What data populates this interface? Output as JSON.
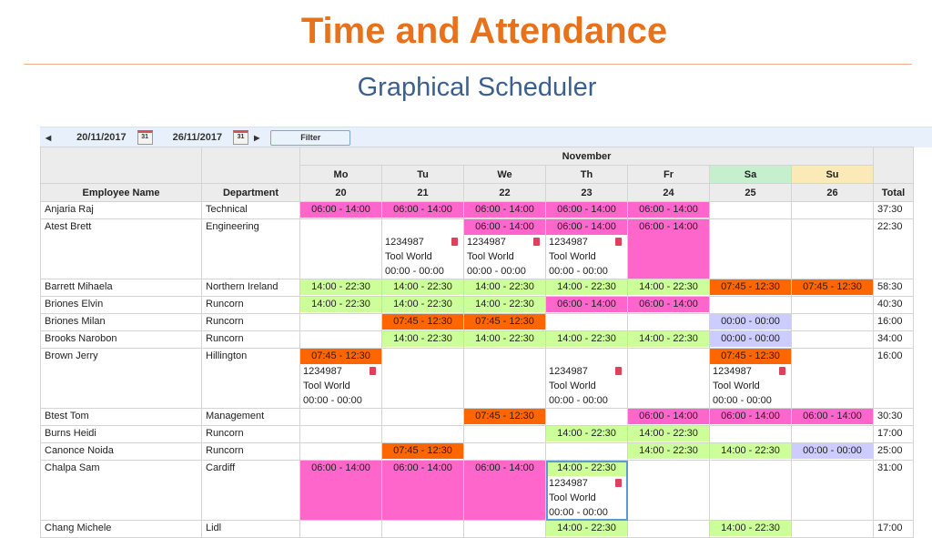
{
  "header": {
    "title": "Time and Attendance",
    "subtitle": "Graphical Scheduler"
  },
  "toolbar": {
    "start_date": "20/11/2017",
    "end_date": "26/11/2017",
    "calendar_icon_text": "31",
    "filter_label": "Filter"
  },
  "colors": {
    "title": "#e8721c",
    "subtitle": "#3b5f8f",
    "pink": "#ff66cc",
    "green": "#ccff99",
    "orange": "#ff6600",
    "lavender": "#ccccff",
    "saturday": "#c6efce",
    "sunday": "#fbe9b7"
  },
  "grid": {
    "month": "November",
    "col_name": "Employee Name",
    "col_dept": "Department",
    "col_total": "Total",
    "days": [
      {
        "dow": "Mo",
        "date": "20"
      },
      {
        "dow": "Tu",
        "date": "21"
      },
      {
        "dow": "We",
        "date": "22"
      },
      {
        "dow": "Th",
        "date": "23"
      },
      {
        "dow": "Fr",
        "date": "24"
      },
      {
        "dow": "Sa",
        "date": "25",
        "color": "saturday"
      },
      {
        "dow": "Su",
        "date": "26",
        "color": "sunday"
      }
    ],
    "rows": [
      {
        "name": "Anjaria Raj",
        "dept": "Technical",
        "total": "37:30",
        "cells": [
          {
            "shift": "06:00 - 14:00",
            "color": "pink"
          },
          {
            "shift": "06:00 - 14:00",
            "color": "pink"
          },
          {
            "shift": "06:00 - 14:00",
            "color": "pink"
          },
          {
            "shift": "06:00 - 14:00",
            "color": "pink"
          },
          {
            "shift": "06:00 - 14:00",
            "color": "pink"
          },
          {},
          {}
        ]
      },
      {
        "name": "Atest Brett",
        "dept": "Engineering",
        "total": "22:30",
        "cells": [
          {},
          {
            "job": {
              "id": "1234987",
              "site": "Tool World",
              "time": "00:00 - 00:00"
            }
          },
          {
            "shift": "06:00 - 14:00",
            "color": "pink",
            "job": {
              "id": "1234987",
              "site": "Tool World",
              "time": "00:00 - 00:00"
            }
          },
          {
            "shift": "06:00 - 14:00",
            "color": "pink",
            "job": {
              "id": "1234987",
              "site": "Tool World",
              "time": "00:00 - 00:00"
            }
          },
          {
            "shift": "06:00 - 14:00",
            "color": "pink",
            "fill": true
          },
          {},
          {}
        ]
      },
      {
        "name": "Barrett Mihaela",
        "dept": "Northern Ireland",
        "total": "58:30",
        "cells": [
          {
            "shift": "14:00 - 22:30",
            "color": "green"
          },
          {
            "shift": "14:00 - 22:30",
            "color": "green"
          },
          {
            "shift": "14:00 - 22:30",
            "color": "green"
          },
          {
            "shift": "14:00 - 22:30",
            "color": "green"
          },
          {
            "shift": "14:00 - 22:30",
            "color": "green"
          },
          {
            "shift": "07:45 - 12:30",
            "color": "orange"
          },
          {
            "shift": "07:45 - 12:30",
            "color": "orange"
          }
        ]
      },
      {
        "name": "Briones Elvin",
        "dept": "Runcorn",
        "total": "40:30",
        "cells": [
          {
            "shift": "14:00 - 22:30",
            "color": "green"
          },
          {
            "shift": "14:00 - 22:30",
            "color": "green"
          },
          {
            "shift": "14:00 - 22:30",
            "color": "green"
          },
          {
            "shift": "06:00 - 14:00",
            "color": "pink"
          },
          {
            "shift": "06:00 - 14:00",
            "color": "pink"
          },
          {},
          {}
        ]
      },
      {
        "name": "Briones Milan",
        "dept": "Runcorn",
        "total": "16:00",
        "cells": [
          {},
          {
            "shift": "07:45 - 12:30",
            "color": "orange"
          },
          {
            "shift": "07:45 - 12:30",
            "color": "orange"
          },
          {},
          {},
          {
            "shift": "00:00 - 00:00",
            "color": "lavender"
          },
          {}
        ]
      },
      {
        "name": "Brooks Narobon",
        "dept": "Runcorn",
        "total": "34:00",
        "cells": [
          {},
          {
            "shift": "14:00 - 22:30",
            "color": "green"
          },
          {
            "shift": "14:00 - 22:30",
            "color": "green"
          },
          {
            "shift": "14:00 - 22:30",
            "color": "green"
          },
          {
            "shift": "14:00 - 22:30",
            "color": "green"
          },
          {
            "shift": "00:00 - 00:00",
            "color": "lavender"
          },
          {}
        ]
      },
      {
        "name": "Brown Jerry",
        "dept": "Hillington",
        "total": "16:00",
        "cells": [
          {
            "shift": "07:45 - 12:30",
            "color": "orange",
            "job": {
              "id": "1234987",
              "site": "Tool World",
              "time": "00:00 - 00:00"
            }
          },
          {},
          {},
          {
            "job": {
              "id": "1234987",
              "site": "Tool World",
              "time": "00:00 - 00:00"
            }
          },
          {},
          {
            "shift": "07:45 - 12:30",
            "color": "orange",
            "job": {
              "id": "1234987",
              "site": "Tool World",
              "time": "00:00 - 00:00"
            }
          },
          {}
        ]
      },
      {
        "name": "Btest Tom",
        "dept": "Management",
        "total": "30:30",
        "cells": [
          {},
          {},
          {
            "shift": "07:45 - 12:30",
            "color": "orange"
          },
          {},
          {
            "shift": "06:00 - 14:00",
            "color": "pink"
          },
          {
            "shift": "06:00 - 14:00",
            "color": "pink"
          },
          {
            "shift": "06:00 - 14:00",
            "color": "pink"
          }
        ]
      },
      {
        "name": "Burns Heidi",
        "dept": "Runcorn",
        "total": "17:00",
        "cells": [
          {},
          {},
          {},
          {
            "shift": "14:00 - 22:30",
            "color": "green"
          },
          {
            "shift": "14:00 - 22:30",
            "color": "green"
          },
          {},
          {}
        ]
      },
      {
        "name": "Canonce Noida",
        "dept": "Runcorn",
        "total": "25:00",
        "cells": [
          {},
          {
            "shift": "07:45 - 12:30",
            "color": "orange"
          },
          {},
          {},
          {
            "shift": "14:00 - 22:30",
            "color": "green"
          },
          {
            "shift": "14:00 - 22:30",
            "color": "green"
          },
          {
            "shift": "00:00 - 00:00",
            "color": "lavender"
          }
        ]
      },
      {
        "name": "Chalpa Sam",
        "dept": "Cardiff",
        "total": "31:00",
        "cells": [
          {
            "shift": "06:00 - 14:00",
            "color": "pink",
            "fill": true
          },
          {
            "shift": "06:00 - 14:00",
            "color": "pink",
            "fill": true
          },
          {
            "shift": "06:00 - 14:00",
            "color": "pink",
            "fill": true
          },
          {
            "shift": "14:00 - 22:30",
            "color": "green",
            "selected": true,
            "job": {
              "id": "1234987",
              "site": "Tool World",
              "time": "00:00 - 00:00"
            }
          },
          {},
          {},
          {}
        ]
      },
      {
        "name": "Chang Michele",
        "dept": "Lidl",
        "total": "17:00",
        "cells": [
          {},
          {},
          {},
          {
            "shift": "14:00 - 22:30",
            "color": "green"
          },
          {},
          {
            "shift": "14:00 - 22:30",
            "color": "green"
          },
          {}
        ]
      }
    ]
  }
}
